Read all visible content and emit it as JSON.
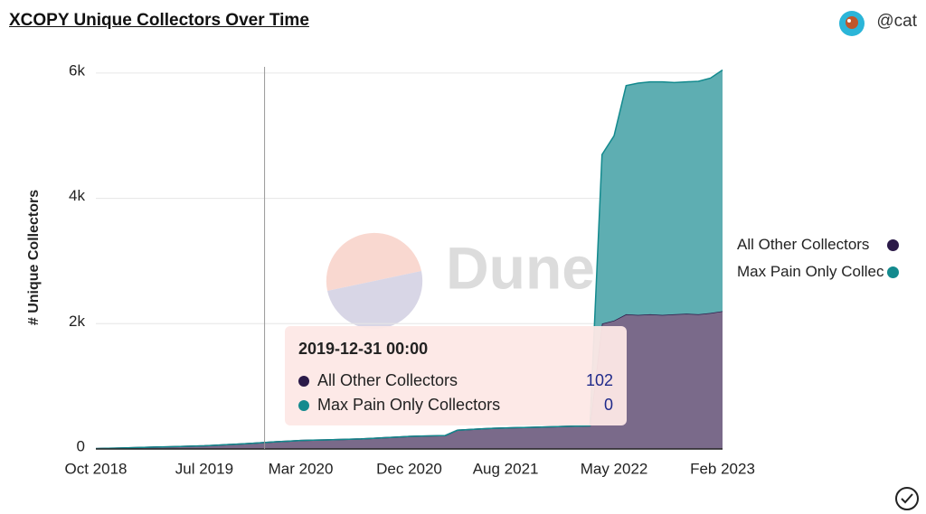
{
  "header": {
    "user": "@cat"
  },
  "chart_data": {
    "type": "stacked-area",
    "title": "XCOPY Unique Collectors Over Time",
    "y_label": "# Unique Collectors",
    "watermark": "Dune",
    "x": [
      "2018-10",
      "2018-11",
      "2018-12",
      "2019-01",
      "2019-02",
      "2019-03",
      "2019-04",
      "2019-05",
      "2019-06",
      "2019-07",
      "2019-08",
      "2019-09",
      "2019-10",
      "2019-11",
      "2019-12",
      "2020-01",
      "2020-02",
      "2020-03",
      "2020-04",
      "2020-05",
      "2020-06",
      "2020-07",
      "2020-08",
      "2020-09",
      "2020-10",
      "2020-11",
      "2020-12",
      "2021-01",
      "2021-02",
      "2021-03",
      "2021-04",
      "2021-05",
      "2021-06",
      "2021-07",
      "2021-08",
      "2021-09",
      "2021-10",
      "2021-11",
      "2021-12",
      "2022-01",
      "2022-02",
      "2022-03",
      "2022-04",
      "2022-05",
      "2022-06",
      "2022-07",
      "2022-08",
      "2022-09",
      "2022-10",
      "2022-11",
      "2022-12",
      "2023-01",
      "2023-02"
    ],
    "series": [
      {
        "name": "All Other Collectors",
        "color": "#2b1a48",
        "fill": "#7a6a8a",
        "values": [
          5,
          10,
          15,
          20,
          25,
          30,
          35,
          40,
          45,
          50,
          60,
          70,
          80,
          90,
          102,
          115,
          125,
          135,
          140,
          145,
          150,
          155,
          160,
          170,
          180,
          190,
          200,
          205,
          210,
          215,
          300,
          310,
          320,
          330,
          335,
          340,
          345,
          350,
          355,
          360,
          365,
          370,
          2000,
          2050,
          2150,
          2140,
          2150,
          2140,
          2150,
          2160,
          2150,
          2170,
          2200
        ]
      },
      {
        "name": "Max Pain Only Collectors",
        "color": "#138a8e",
        "fill": "#5eaeb2",
        "values": [
          0,
          0,
          0,
          0,
          0,
          0,
          0,
          0,
          0,
          0,
          0,
          0,
          0,
          0,
          0,
          0,
          0,
          0,
          0,
          0,
          0,
          0,
          0,
          0,
          0,
          0,
          0,
          0,
          0,
          0,
          0,
          0,
          0,
          0,
          0,
          0,
          0,
          0,
          0,
          0,
          0,
          0,
          2700,
          2950,
          3650,
          3700,
          3710,
          3720,
          3700,
          3700,
          3720,
          3750,
          3850
        ]
      }
    ],
    "xlim": [
      "2018-10",
      "2023-02"
    ],
    "xticks": [
      {
        "value": "2018-10",
        "label": "Oct 2018"
      },
      {
        "value": "2019-07",
        "label": "Jul 2019"
      },
      {
        "value": "2020-03",
        "label": "Mar 2020"
      },
      {
        "value": "2020-12",
        "label": "Dec 2020"
      },
      {
        "value": "2021-08",
        "label": "Aug 2021"
      },
      {
        "value": "2022-05",
        "label": "May 2022"
      },
      {
        "value": "2023-02",
        "label": "Feb 2023"
      }
    ],
    "ylim": [
      0,
      6100
    ],
    "yticks": [
      0,
      {
        "value": 2000,
        "label": "2k"
      },
      {
        "value": 4000,
        "label": "4k"
      },
      {
        "value": 6000,
        "label": "6k"
      }
    ],
    "grid": true,
    "tooltip": {
      "title": "2019-12-31 00:00"
    }
  }
}
